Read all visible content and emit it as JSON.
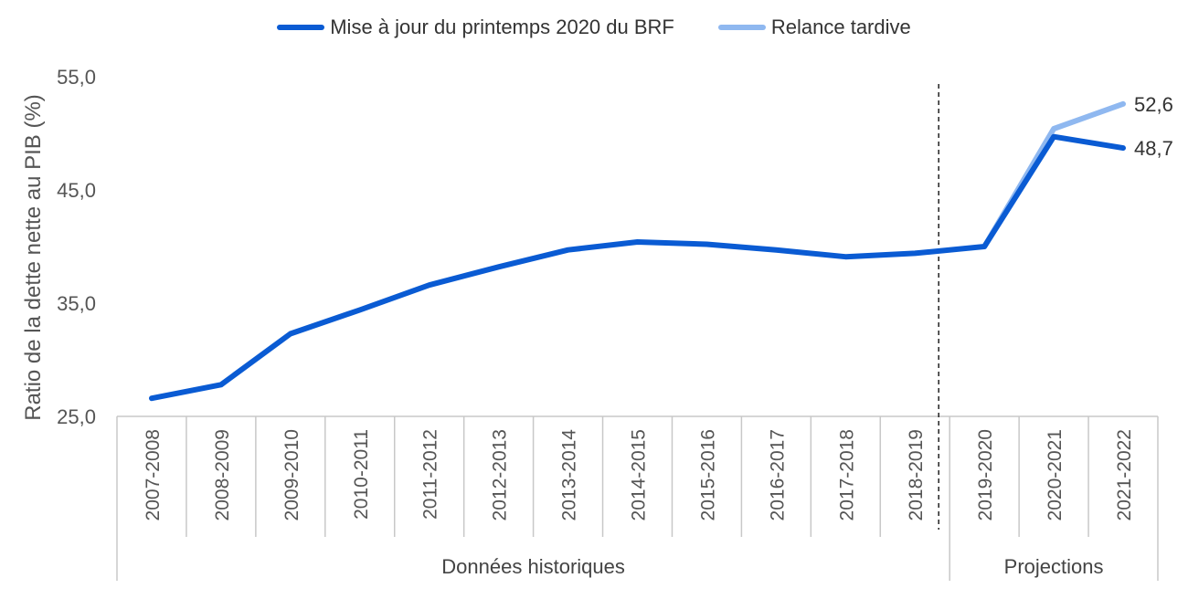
{
  "chart_data": {
    "type": "line",
    "title": "",
    "xlabel": "",
    "ylabel": "Ratio de la dette nette au PIB (%)",
    "ylim": [
      25,
      55
    ],
    "yticks": [
      "25,0",
      "35,0",
      "45,0",
      "55,0"
    ],
    "ytick_values": [
      25,
      35,
      45,
      55
    ],
    "grid": false,
    "legend_position": "top-center",
    "categories": [
      "2007-2008",
      "2008-2009",
      "2009-2010",
      "2010-2011",
      "2011-2012",
      "2012-2013",
      "2013-2014",
      "2014-2015",
      "2015-2016",
      "2016-2017",
      "2017-2018",
      "2018-2019",
      "2019-2020",
      "2020-2021",
      "2021-2022"
    ],
    "groups": [
      {
        "label": "Données historiques",
        "from": "2007-2008",
        "to": "2018-2019"
      },
      {
        "label": "Projections",
        "from": "2019-2020",
        "to": "2021-2022"
      }
    ],
    "series": [
      {
        "name": "Mise à jour du printemps 2020 du BRF",
        "color": "#0a5bd3",
        "values": [
          26.6,
          27.8,
          32.3,
          34.4,
          36.6,
          38.2,
          39.7,
          40.4,
          40.2,
          39.7,
          39.1,
          39.4,
          40.0,
          49.7,
          48.7
        ],
        "end_label": "48,7"
      },
      {
        "name": "Relance tardive",
        "color": "#8fb8f0",
        "values": [
          null,
          null,
          null,
          null,
          null,
          null,
          null,
          null,
          null,
          null,
          null,
          null,
          40.0,
          50.4,
          52.6
        ],
        "end_label": "52,6"
      }
    ]
  }
}
